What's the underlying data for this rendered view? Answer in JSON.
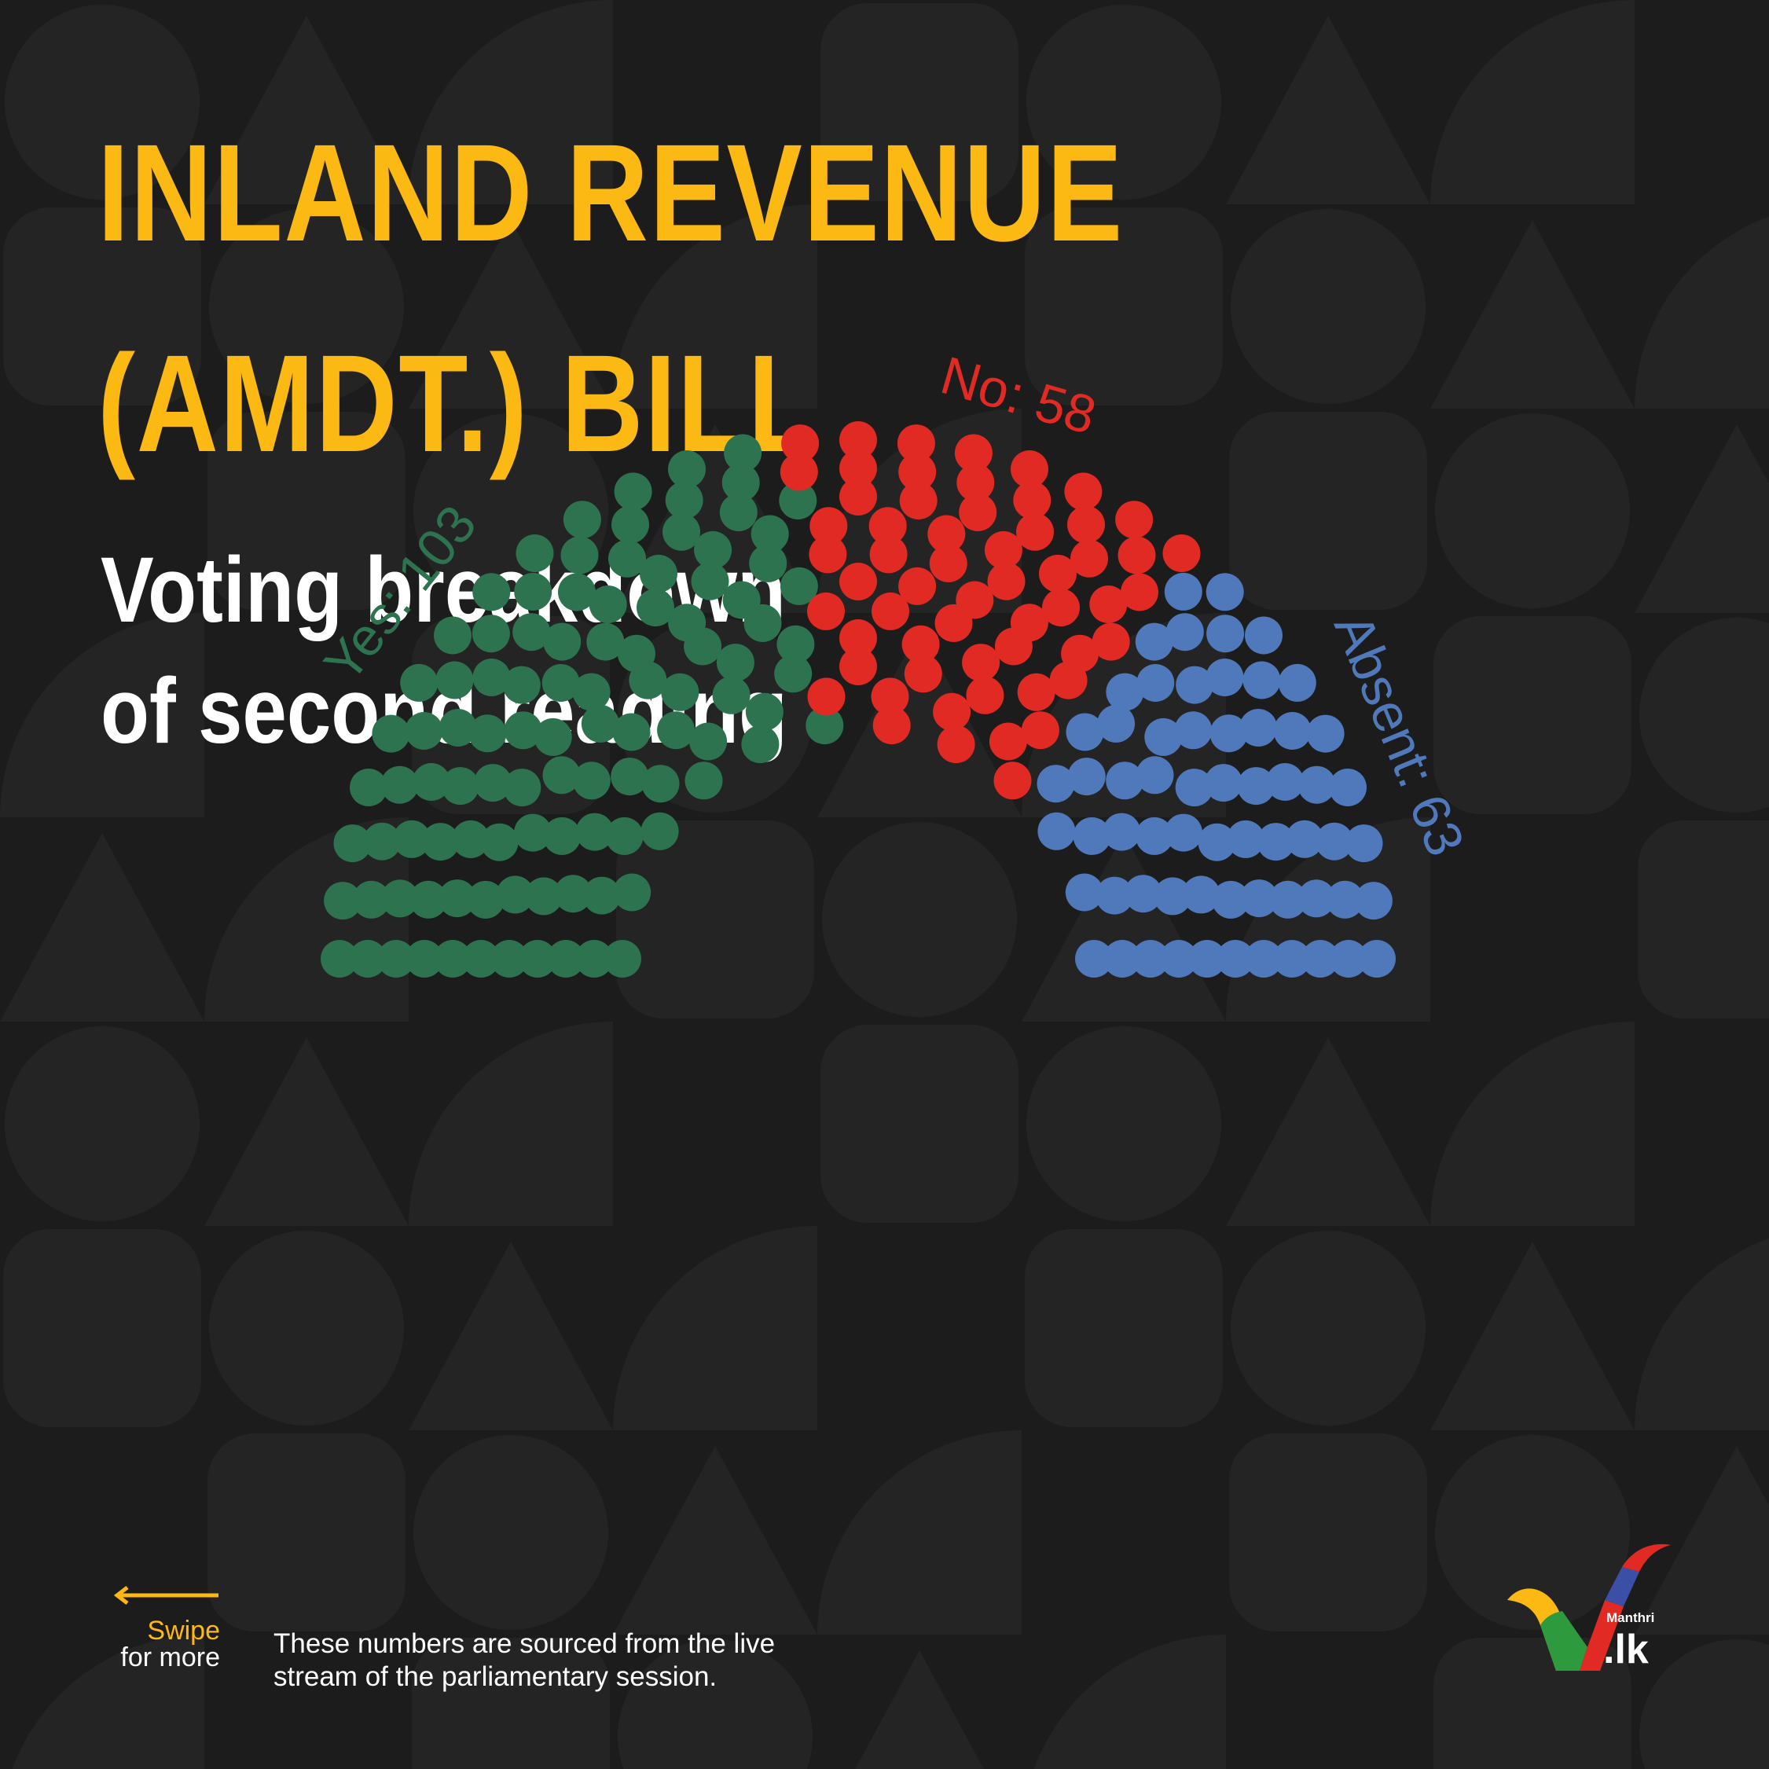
{
  "title": {
    "line1": "INLAND REVENUE",
    "line2": "(AMDT.) BILL"
  },
  "subtitle": {
    "line1": "Voting breakdown",
    "line2": "of second reading"
  },
  "chart_data": {
    "type": "parliament",
    "series": [
      {
        "name": "Yes",
        "label": "Yes: 103",
        "value": 103,
        "color": "#2e7350"
      },
      {
        "name": "No",
        "label": "No: 58",
        "value": 58,
        "color": "#e02a23"
      },
      {
        "name": "Absent",
        "label": "Absent: 63",
        "value": 63,
        "color": "#4f79ba"
      }
    ],
    "total": 224
  },
  "swipe": {
    "line1": "Swipe",
    "line2": "for more"
  },
  "footnote": {
    "line1": "These numbers are sourced from the live",
    "line2": "stream of the parliamentary session."
  },
  "logo": {
    "brand": "Manthri",
    "domain": ".lk"
  },
  "colors": {
    "background": "#1c1c1c",
    "title": "#fcb813",
    "subtitle": "#ffffff",
    "accent": "#fcb813"
  }
}
